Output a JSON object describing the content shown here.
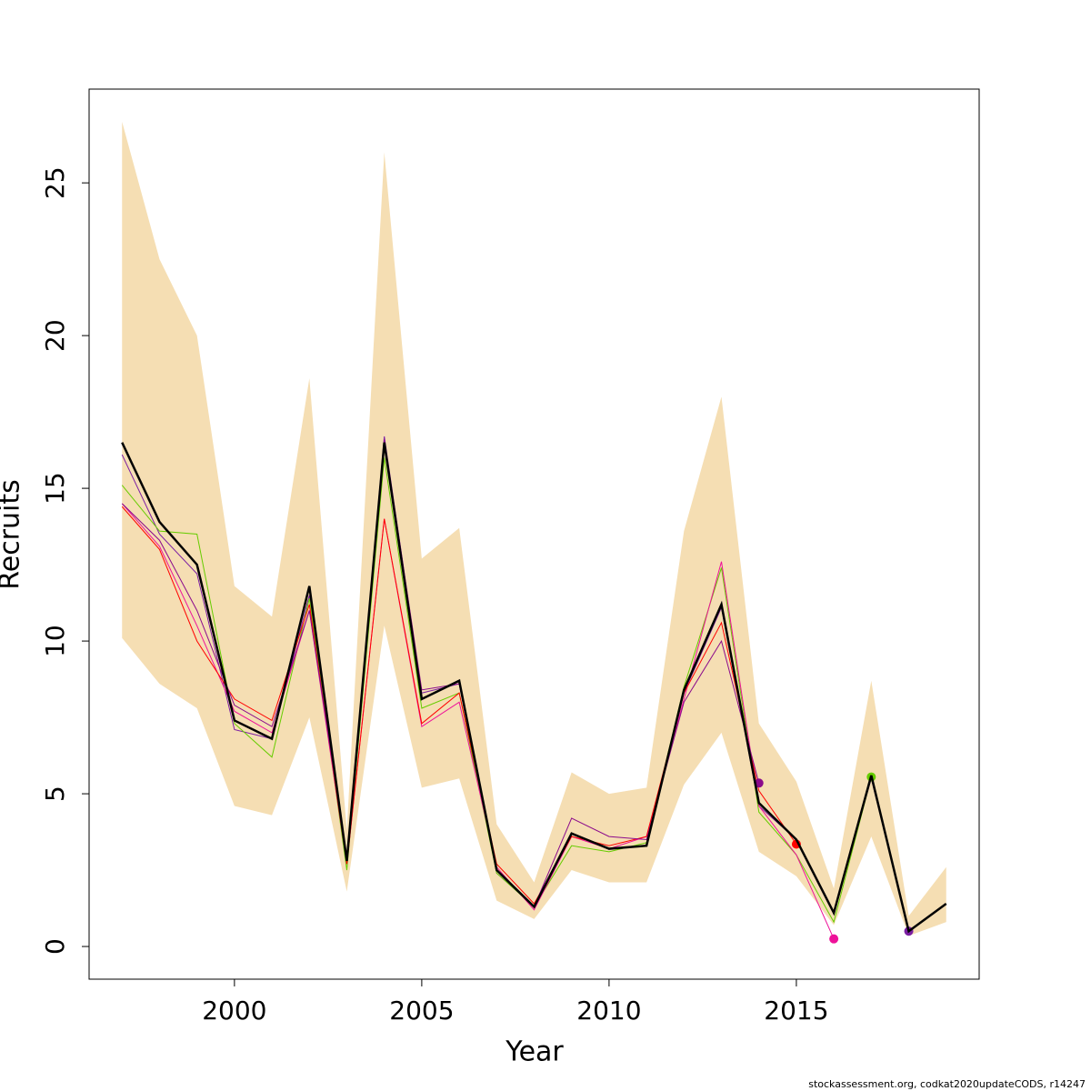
{
  "chart_data": {
    "type": "line",
    "xlabel": "Year",
    "ylabel": "Recruits",
    "footnote": "stockassessment.org, codkat2020updateCODS, r14247",
    "x": [
      1997,
      1998,
      1999,
      2000,
      2001,
      2002,
      2003,
      2004,
      2005,
      2006,
      2007,
      2008,
      2009,
      2010,
      2011,
      2012,
      2013,
      2014,
      2015,
      2016,
      2017,
      2018,
      2019
    ],
    "xlim": [
      1996.12,
      2019.88
    ],
    "xticks": [
      2000,
      2005,
      2010,
      2015
    ],
    "ylim": [
      -1.07,
      28.07
    ],
    "yticks": [
      0,
      5,
      10,
      15,
      20,
      25
    ],
    "band": {
      "color": "#f5deb3",
      "upper": [
        27.0,
        22.5,
        20.0,
        11.8,
        10.8,
        18.6,
        3.8,
        26.0,
        12.7,
        13.7,
        4.0,
        2.1,
        5.7,
        5.0,
        5.2,
        13.6,
        18.0,
        7.3,
        5.4,
        1.9,
        8.7,
        1.0,
        2.6
      ],
      "lower": [
        10.1,
        8.6,
        7.8,
        4.6,
        4.3,
        7.5,
        1.8,
        10.5,
        5.2,
        5.5,
        1.5,
        0.9,
        2.5,
        2.1,
        2.1,
        5.3,
        7.0,
        3.1,
        2.3,
        0.7,
        3.6,
        0.35,
        0.8
      ]
    },
    "series": [
      {
        "color": "#7b1fa2",
        "end_marker": true,
        "values": [
          16.1,
          13.5,
          12.2,
          7.1,
          6.8,
          11.5,
          2.7,
          16.7,
          8.3,
          8.6,
          2.4,
          1.3,
          3.7,
          3.2,
          3.3,
          8.3,
          11.1,
          4.6,
          3.5,
          1.1,
          5.5,
          0.5,
          null
        ]
      },
      {
        "color": "#66cc00",
        "end_marker": true,
        "values": [
          15.1,
          13.6,
          13.5,
          7.3,
          6.2,
          11.4,
          2.5,
          16.0,
          7.8,
          8.3,
          2.4,
          1.3,
          3.3,
          3.1,
          3.4,
          8.5,
          12.4,
          4.4,
          3.0,
          0.8,
          5.55,
          null,
          null
        ]
      },
      {
        "color": "#ee1199",
        "end_marker": true,
        "values": [
          14.5,
          13.1,
          10.5,
          7.7,
          7.0,
          11.0,
          2.7,
          14.0,
          7.2,
          8.0,
          2.6,
          1.2,
          3.6,
          3.2,
          3.6,
          8.1,
          12.6,
          4.6,
          3.0,
          0.25,
          null,
          null,
          null
        ]
      },
      {
        "color": "#ff0000",
        "end_marker": true,
        "values": [
          14.4,
          13.0,
          10.0,
          8.1,
          7.4,
          11.2,
          2.7,
          14.0,
          7.3,
          8.3,
          2.7,
          1.4,
          3.6,
          3.3,
          3.6,
          8.3,
          10.6,
          5.1,
          3.35,
          null,
          null,
          null,
          null
        ]
      },
      {
        "color": "#8b0a8b",
        "end_marker": true,
        "values": [
          14.5,
          13.3,
          11.0,
          7.9,
          7.2,
          11.0,
          2.9,
          16.6,
          8.4,
          8.6,
          2.5,
          1.3,
          4.2,
          3.6,
          3.5,
          8.0,
          10.0,
          5.35,
          null,
          null,
          null,
          null,
          null
        ]
      },
      {
        "color": "#000000",
        "width": 2.5,
        "end_marker": false,
        "values": [
          16.5,
          13.9,
          12.5,
          7.4,
          6.8,
          11.8,
          2.8,
          16.5,
          8.1,
          8.7,
          2.5,
          1.3,
          3.7,
          3.2,
          3.3,
          8.4,
          11.2,
          4.7,
          3.5,
          1.1,
          5.6,
          0.5,
          1.4
        ]
      }
    ]
  }
}
